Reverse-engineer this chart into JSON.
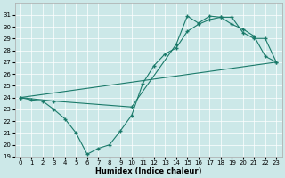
{
  "xlabel": "Humidex (Indice chaleur)",
  "bg_color": "#cce8e8",
  "grid_color": "#ffffff",
  "line_color": "#1a7a6a",
  "xlim": [
    -0.5,
    23.5
  ],
  "ylim": [
    19,
    32
  ],
  "yticks": [
    19,
    20,
    21,
    22,
    23,
    24,
    25,
    26,
    27,
    28,
    29,
    30,
    31
  ],
  "xticks": [
    0,
    1,
    2,
    3,
    4,
    5,
    6,
    7,
    8,
    9,
    10,
    11,
    12,
    13,
    14,
    15,
    16,
    17,
    18,
    19,
    20,
    21,
    22,
    23
  ],
  "line1_x": [
    0,
    1,
    2,
    3,
    4,
    5,
    6,
    7,
    8,
    9,
    10,
    11,
    12,
    13,
    14,
    15,
    16,
    17,
    18,
    19,
    20,
    21,
    22,
    23
  ],
  "line1_y": [
    24,
    23.8,
    23.7,
    23.0,
    22.2,
    21.0,
    19.2,
    19.7,
    20.0,
    21.2,
    22.5,
    25.2,
    26.7,
    27.7,
    28.2,
    29.6,
    30.2,
    30.6,
    30.8,
    30.2,
    29.8,
    29.2,
    27.5,
    27.0
  ],
  "line2_x": [
    0,
    3,
    10,
    14,
    15,
    16,
    17,
    18,
    19,
    20,
    21,
    22,
    23
  ],
  "line2_y": [
    24,
    23.7,
    23.2,
    28.5,
    30.9,
    30.3,
    30.9,
    30.8,
    30.8,
    29.5,
    29.0,
    29.0,
    27.0
  ],
  "line3_x": [
    0,
    23
  ],
  "line3_y": [
    24,
    27.0
  ]
}
